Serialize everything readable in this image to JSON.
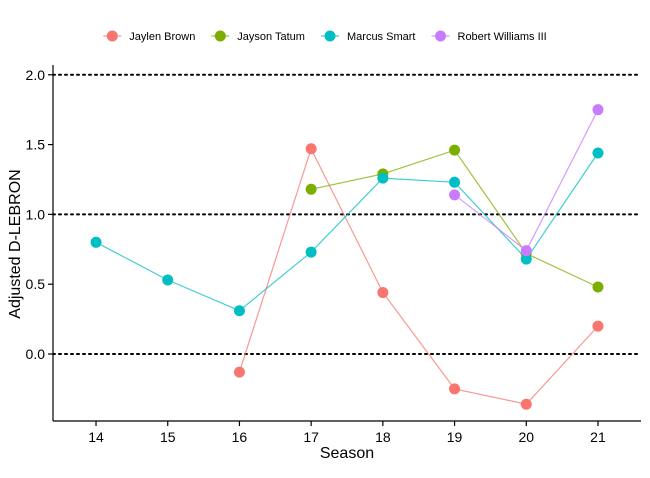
{
  "chart_data": {
    "type": "line",
    "title": "",
    "xlabel": "Season",
    "ylabel": "Adjusted D-LEBRON",
    "x": [
      14,
      15,
      16,
      17,
      18,
      19,
      20,
      21
    ],
    "xlim": [
      13.4,
      21.6
    ],
    "ylim": [
      -0.48,
      2.07
    ],
    "yticks": [
      0.0,
      0.5,
      1.0,
      1.5,
      2.0
    ],
    "ytick_labels": [
      "0.0",
      "0.5",
      "1.0",
      "1.5",
      "2.0"
    ],
    "reference_lines": [
      0.0,
      1.0,
      2.0
    ],
    "legend_position": "top",
    "series": [
      {
        "name": "Jaylen Brown",
        "color": "#F8766D",
        "points": [
          [
            16,
            -0.13
          ],
          [
            17,
            1.47
          ],
          [
            18,
            0.44
          ],
          [
            19,
            -0.25
          ],
          [
            20,
            -0.36
          ],
          [
            21,
            0.2
          ]
        ]
      },
      {
        "name": "Jayson Tatum",
        "color": "#7CAE00",
        "points": [
          [
            17,
            1.18
          ],
          [
            18,
            1.29
          ],
          [
            19,
            1.46
          ],
          [
            20,
            0.72
          ],
          [
            21,
            0.48
          ]
        ]
      },
      {
        "name": "Marcus Smart",
        "color": "#00BFC4",
        "points": [
          [
            14,
            0.8
          ],
          [
            15,
            0.53
          ],
          [
            16,
            0.31
          ],
          [
            17,
            0.73
          ],
          [
            18,
            1.26
          ],
          [
            19,
            1.23
          ],
          [
            20,
            0.68
          ],
          [
            21,
            1.44
          ]
        ]
      },
      {
        "name": "Robert Williams III",
        "color": "#C77CFF",
        "points": [
          [
            19,
            1.14
          ],
          [
            20,
            0.74
          ],
          [
            21,
            1.75
          ]
        ]
      }
    ]
  }
}
